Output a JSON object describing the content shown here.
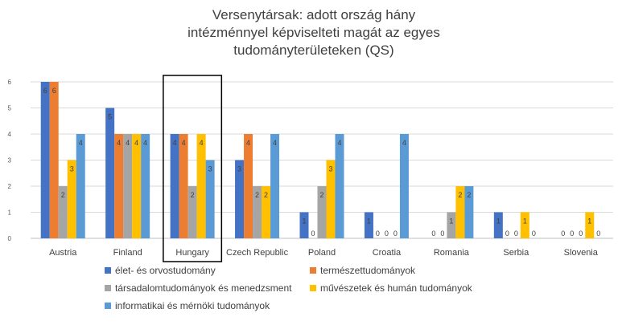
{
  "chart_data": {
    "type": "bar",
    "title_lines": [
      "Versenytársak: adott ország hány",
      "intézménnyel képviselteti magát az egyes",
      "tudományterületeken (QS)"
    ],
    "categories": [
      "Austria",
      "Finland",
      "Hungary",
      "Czech Republic",
      "Poland",
      "Croatia",
      "Romania",
      "Serbia",
      "Slovenia"
    ],
    "ylim": [
      0,
      6
    ],
    "yticks": [
      0,
      1,
      2,
      3,
      4,
      5,
      6
    ],
    "grid": true,
    "legend_position": "bottom",
    "highlighted_category": "Hungary",
    "series": [
      {
        "name": "élet- és orvostudomány",
        "color": "#4472c4",
        "values": [
          6,
          5,
          4,
          3,
          1,
          1,
          0,
          1,
          0
        ]
      },
      {
        "name": "természettudományok",
        "color": "#ed7d31",
        "values": [
          6,
          4,
          4,
          4,
          0,
          0,
          0,
          0,
          0
        ]
      },
      {
        "name": "társadalomtudományok és menedzsment",
        "color": "#a5a5a5",
        "values": [
          2,
          4,
          2,
          2,
          2,
          0,
          1,
          0,
          0
        ]
      },
      {
        "name": "művészetek és humán tudományok",
        "color": "#ffc000",
        "values": [
          3,
          4,
          4,
          2,
          3,
          0,
          2,
          1,
          1
        ]
      },
      {
        "name": "informatikai és mérnöki tudományok",
        "color": "#5b9bd5",
        "values": [
          4,
          4,
          3,
          4,
          4,
          4,
          2,
          0,
          0
        ]
      }
    ]
  }
}
